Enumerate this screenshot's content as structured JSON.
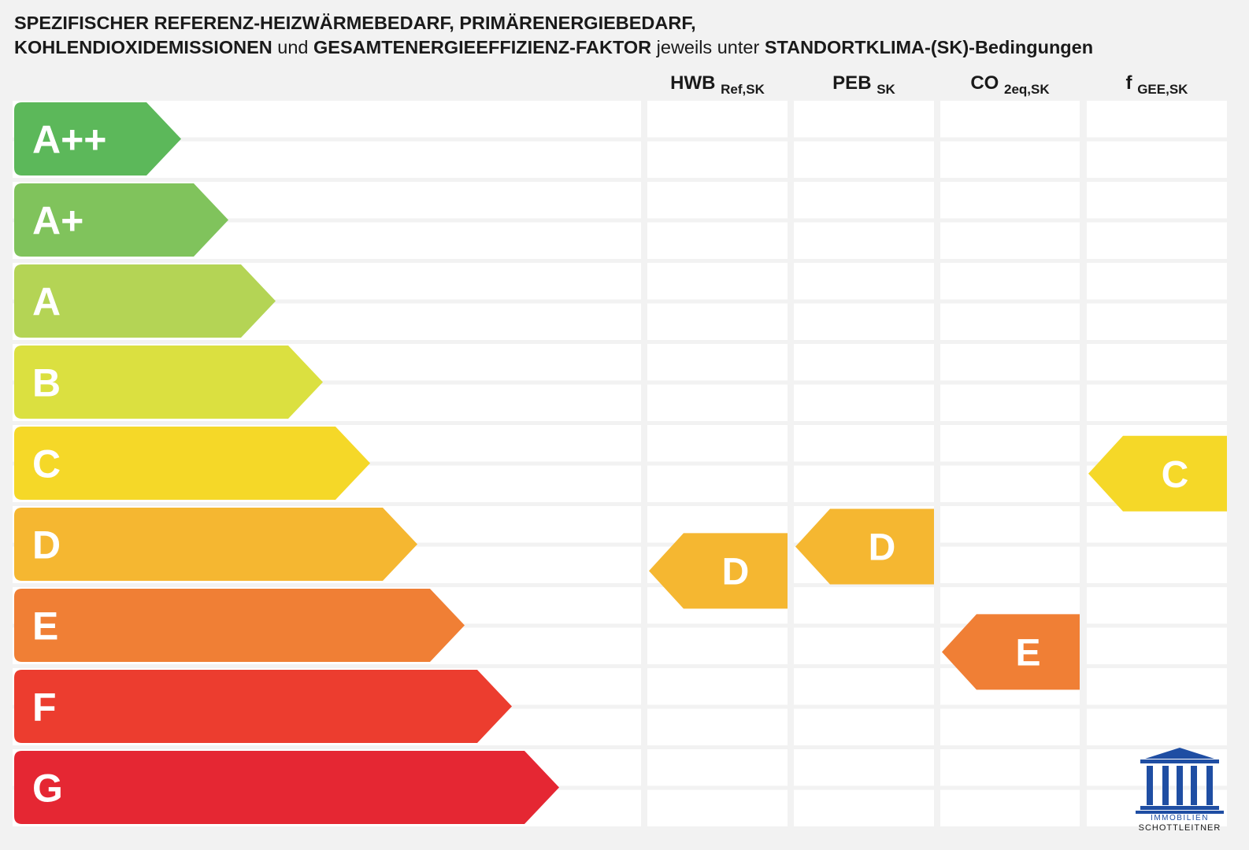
{
  "title": {
    "line1": "SPEZIFISCHER REFERENZ-HEIZWÄRMEBEDARF, PRIMÄRENERGIEBEDARF,",
    "line2_bold_a": "KOHLENDIOXIDEMISSIONEN",
    "line2_normal_a": " und ",
    "line2_bold_b": "GESAMTENERGIEEFFIZIENZ-FAKTOR",
    "line2_normal_b": " jeweils unter ",
    "line2_bold_c": "STANDORTKLIMA-(SK)-Bedingungen"
  },
  "chart_data": {
    "type": "table",
    "scale": [
      {
        "grade": "A++",
        "color": "#5cb85a"
      },
      {
        "grade": "A+",
        "color": "#80c35c"
      },
      {
        "grade": "A",
        "color": "#b4d455"
      },
      {
        "grade": "B",
        "color": "#dbe040"
      },
      {
        "grade": "C",
        "color": "#f5d828"
      },
      {
        "grade": "D",
        "color": "#f5b731"
      },
      {
        "grade": "E",
        "color": "#f07f35"
      },
      {
        "grade": "F",
        "color": "#ec3d2f"
      },
      {
        "grade": "G",
        "color": "#e52733"
      }
    ],
    "columns": [
      {
        "main": "HWB",
        "sub": "Ref,SK",
        "rating": "D",
        "position": 5.8
      },
      {
        "main": "PEB",
        "sub": "SK",
        "rating": "D",
        "position": 5.5
      },
      {
        "main": "CO",
        "sub": "2eq,SK",
        "rating": "E",
        "position": 6.8
      },
      {
        "main": "f",
        "sub": "GEE,SK",
        "rating": "C",
        "position": 4.6
      }
    ]
  },
  "logo": {
    "line1": "IMMOBILIEN",
    "line2": "SCHOTTLEITNER",
    "color": "#1f4ea3"
  }
}
